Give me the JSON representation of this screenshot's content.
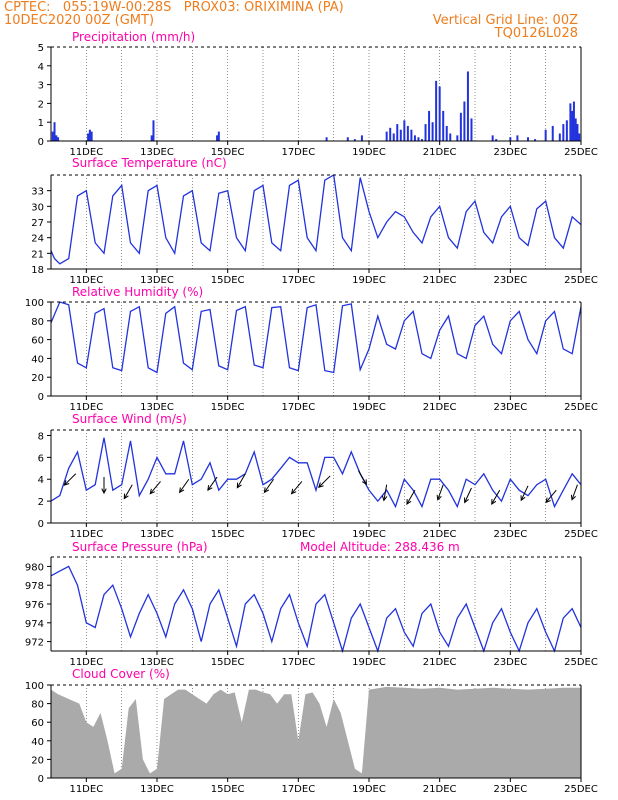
{
  "header": {
    "line1_left": "CPTEC:   055:19W-00:28S   PROX03: ORIXIMINA (PA)",
    "line2_left": "10DEC2020 00Z (GMT)",
    "line2_right": "Vertical Grid Line: 00Z",
    "line3_right": "TQ0126L028"
  },
  "colors": {
    "header": "#ee7d1e",
    "title": "#ff00aa",
    "series": "#2233dd",
    "cloud": "#aaaaaa",
    "arrow": "#000000"
  },
  "x_axis": {
    "labels": [
      "11DEC",
      "13DEC",
      "15DEC",
      "17DEC",
      "19DEC",
      "21DEC",
      "23DEC",
      "25DEC"
    ],
    "label_days": [
      11,
      13,
      15,
      17,
      19,
      21,
      23,
      25
    ]
  },
  "chart_data": [
    {
      "type": "bar",
      "title": "Precipitation (mm/h)",
      "ylim": [
        0,
        5
      ],
      "yticks": [
        0,
        1,
        2,
        3,
        4,
        5
      ],
      "grid": true,
      "x_days": [
        10.05,
        10.1,
        10.15,
        10.2,
        11.05,
        11.1,
        11.15,
        12.85,
        12.9,
        14.7,
        14.75,
        17.8,
        18.4,
        18.6,
        18.8,
        19.5,
        19.6,
        19.7,
        19.8,
        19.9,
        20.0,
        20.1,
        20.2,
        20.3,
        20.4,
        20.5,
        20.6,
        20.7,
        20.8,
        20.9,
        21.0,
        21.1,
        21.2,
        21.3,
        21.5,
        21.6,
        21.7,
        21.8,
        21.9,
        22.5,
        22.6,
        23.0,
        23.2,
        23.5,
        23.7,
        24.0,
        24.2,
        24.4,
        24.5,
        24.6,
        24.7,
        24.75,
        24.8,
        24.85,
        24.9,
        24.95
      ],
      "values": [
        0.5,
        1.0,
        0.3,
        0.2,
        0.4,
        0.6,
        0.5,
        0.3,
        1.1,
        0.3,
        0.5,
        0.2,
        0.2,
        0.1,
        0.3,
        0.5,
        0.7,
        0.4,
        0.9,
        0.6,
        1.1,
        0.8,
        0.6,
        0.3,
        0.2,
        0.1,
        0.9,
        1.6,
        1.0,
        3.2,
        2.9,
        1.6,
        0.8,
        0.4,
        0.3,
        1.5,
        2.1,
        3.7,
        1.2,
        0.3,
        0.1,
        0.2,
        0.3,
        0.2,
        0.1,
        0.6,
        0.8,
        0.4,
        0.9,
        1.1,
        2.0,
        1.6,
        2.1,
        1.2,
        0.9,
        0.4
      ]
    },
    {
      "type": "line",
      "title": "Surface Temperature (nC)",
      "ylim": [
        18,
        36
      ],
      "yticks": [
        18,
        21,
        24,
        27,
        30,
        33
      ],
      "grid": true,
      "x_days": [
        10.0,
        10.1,
        10.25,
        10.5,
        10.75,
        11.0,
        11.25,
        11.5,
        11.75,
        12.0,
        12.25,
        12.5,
        12.75,
        13.0,
        13.25,
        13.5,
        13.75,
        14.0,
        14.25,
        14.5,
        14.75,
        15.0,
        15.25,
        15.5,
        15.75,
        16.0,
        16.25,
        16.5,
        16.75,
        17.0,
        17.25,
        17.5,
        17.75,
        18.0,
        18.25,
        18.5,
        18.75,
        19.0,
        19.25,
        19.5,
        19.75,
        20.0,
        20.25,
        20.5,
        20.75,
        21.0,
        21.25,
        21.5,
        21.75,
        22.0,
        22.25,
        22.5,
        22.75,
        23.0,
        23.25,
        23.5,
        23.75,
        24.0,
        24.25,
        24.5,
        24.75,
        25.0
      ],
      "values": [
        21.5,
        20,
        19,
        20,
        32,
        33,
        23,
        21,
        32,
        34,
        23,
        21,
        33,
        34,
        24,
        21,
        32,
        33,
        23,
        21.5,
        32.5,
        33,
        24,
        21.5,
        33,
        34,
        23,
        21.5,
        34,
        35,
        24,
        21.5,
        35,
        36,
        24,
        21.5,
        35.5,
        29,
        24,
        27,
        29,
        28,
        25,
        23,
        28,
        30,
        24,
        22,
        29,
        31,
        25,
        23,
        28,
        30,
        24,
        22.5,
        29.5,
        31,
        24,
        22,
        28,
        26.5
      ]
    },
    {
      "type": "line",
      "title": "Relative Humidity (%)",
      "ylim": [
        0,
        100
      ],
      "yticks": [
        0,
        20,
        40,
        60,
        80,
        100
      ],
      "grid": true,
      "x_days": [
        10.0,
        10.25,
        10.5,
        10.75,
        11.0,
        11.25,
        11.5,
        11.75,
        12.0,
        12.25,
        12.5,
        12.75,
        13.0,
        13.25,
        13.5,
        13.75,
        14.0,
        14.25,
        14.5,
        14.75,
        15.0,
        15.25,
        15.5,
        15.75,
        16.0,
        16.25,
        16.5,
        16.75,
        17.0,
        17.25,
        17.5,
        17.75,
        18.0,
        18.25,
        18.5,
        18.75,
        19.0,
        19.25,
        19.5,
        19.75,
        20.0,
        20.25,
        20.5,
        20.75,
        21.0,
        21.25,
        21.5,
        21.75,
        22.0,
        22.25,
        22.5,
        22.75,
        23.0,
        23.25,
        23.5,
        23.75,
        24.0,
        24.25,
        24.5,
        24.75,
        25.0
      ],
      "values": [
        78,
        100,
        97,
        35,
        30,
        88,
        93,
        30,
        27,
        90,
        95,
        30,
        25,
        88,
        95,
        35,
        28,
        90,
        92,
        32,
        28,
        91,
        95,
        33,
        30,
        94,
        95,
        30,
        27,
        94,
        97,
        27,
        25,
        96,
        98,
        28,
        50,
        85,
        55,
        50,
        80,
        90,
        45,
        40,
        70,
        85,
        45,
        40,
        75,
        85,
        55,
        45,
        80,
        90,
        60,
        45,
        80,
        90,
        50,
        45,
        95
      ]
    },
    {
      "type": "line",
      "title": "Surface Wind (m/s)",
      "ylim": [
        0,
        8.5
      ],
      "yticks": [
        0,
        2,
        4,
        6,
        8
      ],
      "grid": true,
      "x_days": [
        10.0,
        10.25,
        10.5,
        10.75,
        11.0,
        11.25,
        11.5,
        11.75,
        12.0,
        12.25,
        12.5,
        12.75,
        13.0,
        13.25,
        13.5,
        13.75,
        14.0,
        14.25,
        14.5,
        14.75,
        15.0,
        15.25,
        15.5,
        15.75,
        16.0,
        16.25,
        16.5,
        16.75,
        17.0,
        17.25,
        17.5,
        17.75,
        18.0,
        18.25,
        18.5,
        18.75,
        19.0,
        19.25,
        19.5,
        19.75,
        20.0,
        20.25,
        20.5,
        20.75,
        21.0,
        21.25,
        21.5,
        21.75,
        22.0,
        22.25,
        22.5,
        22.75,
        23.0,
        23.25,
        23.5,
        23.75,
        24.0,
        24.25,
        24.5,
        24.75,
        25.0
      ],
      "values": [
        2,
        2.5,
        5,
        6.5,
        3,
        3.5,
        7.8,
        3,
        3.5,
        7.5,
        2.5,
        4,
        6,
        4.5,
        4.5,
        7.5,
        3.5,
        4,
        5.5,
        3,
        4,
        4,
        4.5,
        6.5,
        3.5,
        4,
        5,
        6,
        5.5,
        5.5,
        3,
        6,
        6,
        4.5,
        6.5,
        4.5,
        3,
        2,
        3,
        1.5,
        4,
        3,
        1.5,
        4,
        4,
        3,
        1.5,
        4,
        3.5,
        4.5,
        3,
        2,
        4,
        3,
        2.5,
        3.5,
        4,
        1.5,
        3,
        4.5,
        3.5
      ],
      "vectors": {
        "x_days": [
          10.7,
          11.5,
          12.3,
          13.1,
          13.9,
          14.7,
          15.5,
          16.3,
          17.1,
          17.9,
          18.7,
          19.5,
          20.3,
          21.1,
          21.9,
          22.7,
          23.5,
          24.3,
          24.9
        ],
        "speed": [
          4.5,
          4.2,
          3.5,
          3.8,
          4.0,
          4.2,
          4.5,
          4.0,
          3.8,
          4.3,
          4.8,
          3.5,
          3.0,
          3.5,
          3.2,
          3.0,
          3.4,
          3.0,
          3.5
        ],
        "dir_deg": [
          225,
          270,
          240,
          230,
          235,
          235,
          240,
          235,
          230,
          225,
          300,
          260,
          240,
          250,
          245,
          240,
          245,
          230,
          250
        ]
      }
    },
    {
      "type": "line",
      "title": "Surface Pressure (hPa)",
      "annotation": "Model Altitude: 288.436 m",
      "ylim": [
        971,
        981
      ],
      "yticks": [
        972,
        974,
        976,
        978,
        980
      ],
      "grid": true,
      "x_days": [
        10.0,
        10.25,
        10.5,
        10.75,
        11.0,
        11.25,
        11.5,
        11.75,
        12.0,
        12.25,
        12.5,
        12.75,
        13.0,
        13.25,
        13.5,
        13.75,
        14.0,
        14.25,
        14.5,
        14.75,
        15.0,
        15.25,
        15.5,
        15.75,
        16.0,
        16.25,
        16.5,
        16.75,
        17.0,
        17.25,
        17.5,
        17.75,
        18.0,
        18.25,
        18.5,
        18.75,
        19.0,
        19.25,
        19.5,
        19.75,
        20.0,
        20.25,
        20.5,
        20.75,
        21.0,
        21.25,
        21.5,
        21.75,
        22.0,
        22.25,
        22.5,
        22.75,
        23.0,
        23.25,
        23.5,
        23.75,
        24.0,
        24.25,
        24.5,
        24.75,
        25.0
      ],
      "values": [
        979,
        979.5,
        980,
        978,
        974,
        973.5,
        977,
        978,
        975.5,
        972.5,
        975,
        977,
        975,
        972.5,
        976,
        977.5,
        975.5,
        972,
        976,
        977.5,
        974.5,
        971.5,
        976,
        977,
        975,
        972,
        975.5,
        977,
        974,
        971.5,
        976,
        977,
        974,
        971,
        974.5,
        976,
        973.5,
        971,
        974.5,
        975.5,
        973,
        971.5,
        975,
        976,
        973,
        971.5,
        974.5,
        976,
        973.5,
        971,
        974,
        975.5,
        973,
        971,
        974,
        975.5,
        973,
        971,
        974.5,
        975.5,
        973.5
      ]
    },
    {
      "type": "area",
      "title": "Cloud Cover (%)",
      "ylim": [
        0,
        100
      ],
      "yticks": [
        0,
        20,
        40,
        60,
        80,
        100
      ],
      "grid": true,
      "x_days": [
        10.0,
        10.2,
        10.5,
        10.8,
        11.0,
        11.2,
        11.4,
        11.6,
        11.8,
        12.0,
        12.2,
        12.4,
        12.6,
        12.8,
        13.0,
        13.2,
        13.4,
        13.6,
        13.8,
        14.0,
        14.2,
        14.4,
        14.6,
        14.8,
        15.0,
        15.2,
        15.4,
        15.6,
        15.8,
        16.0,
        16.2,
        16.4,
        16.6,
        16.8,
        17.0,
        17.2,
        17.4,
        17.6,
        17.8,
        18.0,
        18.2,
        18.4,
        18.6,
        18.8,
        19.0,
        19.5,
        20.0,
        20.5,
        21.0,
        21.5,
        22.0,
        22.5,
        23.0,
        23.5,
        24.0,
        24.5,
        25.0
      ],
      "values": [
        95,
        90,
        85,
        80,
        60,
        55,
        70,
        40,
        5,
        10,
        75,
        85,
        20,
        5,
        10,
        85,
        90,
        95,
        95,
        90,
        85,
        80,
        90,
        95,
        90,
        92,
        60,
        95,
        95,
        92,
        90,
        80,
        90,
        90,
        40,
        90,
        92,
        80,
        55,
        85,
        70,
        40,
        10,
        5,
        95,
        98,
        97,
        96,
        97,
        95,
        96,
        97,
        96,
        95,
        96,
        97,
        97
      ]
    }
  ]
}
